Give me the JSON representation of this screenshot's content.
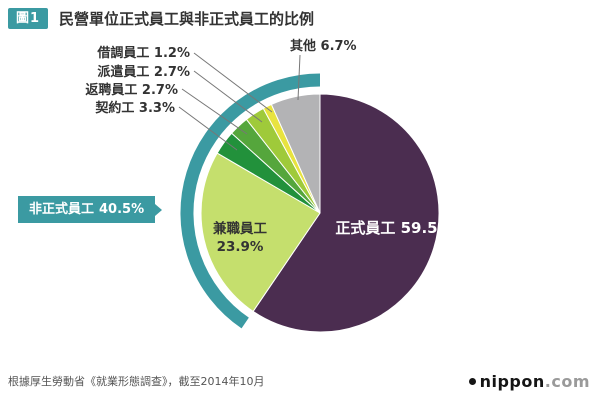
{
  "header": {
    "badge": "圖1",
    "title": "民營單位正式員工與非正式員工的比例"
  },
  "footer": {
    "source": "根據厚生勞動省《就業形態調查》，截至2014年10月"
  },
  "logo": {
    "name": "nippon",
    "tld": ".com"
  },
  "colors": {
    "accent_teal": "#3b9aa2",
    "title_text": "#333333",
    "footer_text": "#555555"
  },
  "chart_data": {
    "type": "pie",
    "title": "民營單位正式員工與非正式員工的比例",
    "unit": "%",
    "start_angle": "12-oclock",
    "direction": "clockwise",
    "slices": [
      {
        "label": "正式員工",
        "value": 59.5,
        "color": "#4b2d50",
        "label_style": "inside-white"
      },
      {
        "label": "兼職員工",
        "value": 23.9,
        "color": "#c5df6d",
        "label_style": "inside-dark"
      },
      {
        "label": "契約工",
        "value": 3.3,
        "color": "#22913b",
        "label_style": "callout"
      },
      {
        "label": "返聘員工",
        "value": 2.7,
        "color": "#55a63c",
        "label_style": "callout"
      },
      {
        "label": "派遣員工",
        "value": 2.7,
        "color": "#9fca3a",
        "label_style": "callout"
      },
      {
        "label": "借調員工",
        "value": 1.2,
        "color": "#e8e33f",
        "label_style": "callout"
      },
      {
        "label": "其他",
        "value": 6.7,
        "color": "#b3b3b5",
        "label_style": "callout"
      }
    ],
    "group_annotation": {
      "label": "非正式員工",
      "value": 40.5,
      "color": "#3b9aa2",
      "covers": [
        "兼職員工",
        "契約工",
        "返聘員工",
        "派遣員工",
        "借調員工",
        "其他"
      ]
    }
  }
}
